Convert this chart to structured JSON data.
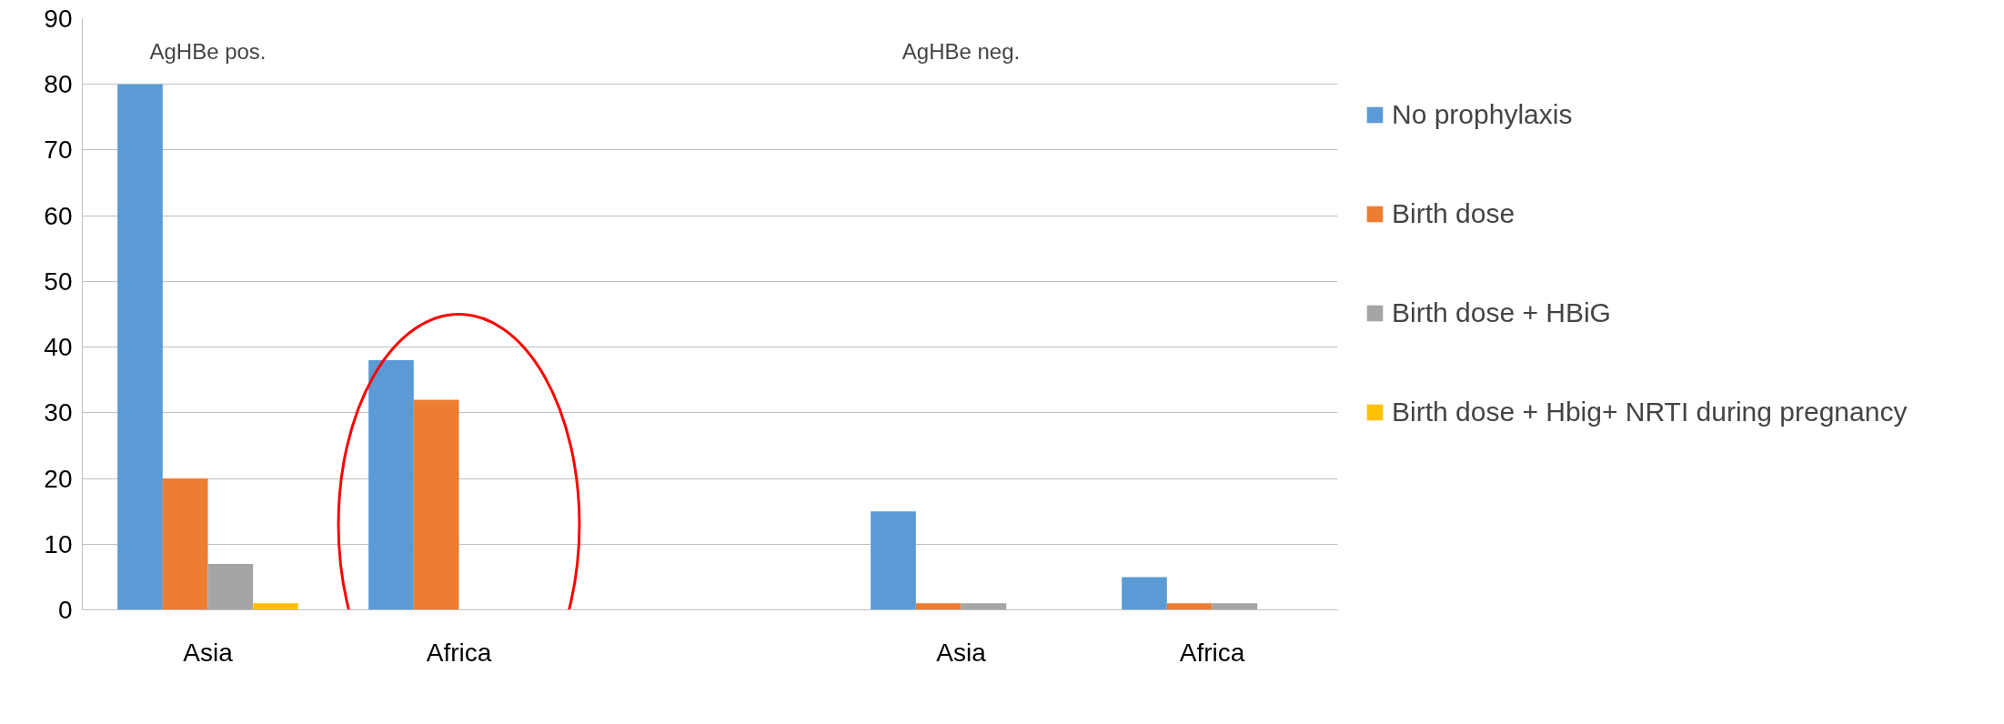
{
  "chart_data": {
    "type": "bar",
    "categories": [
      "Asia",
      "Africa",
      null,
      "Asia",
      "Africa"
    ],
    "series": [
      {
        "name": "No prophylaxis",
        "color": "#5b9bd5",
        "values": [
          80,
          38,
          null,
          15,
          5
        ]
      },
      {
        "name": "Birth dose",
        "color": "#ed7d31",
        "values": [
          20,
          32,
          null,
          1,
          1
        ]
      },
      {
        "name": "Birth dose + HBiG",
        "color": "#a5a5a5",
        "values": [
          7,
          null,
          null,
          1,
          1
        ]
      },
      {
        "name": "Birth dose + Hbig+ NRTI during pregnancy",
        "color": "#ffc000",
        "values": [
          1,
          null,
          null,
          null,
          null
        ]
      }
    ],
    "annotations": [
      "AgHBe pos.",
      "AgHBe neg."
    ],
    "ylim": [
      0,
      90
    ],
    "yticks": [
      0,
      10,
      20,
      30,
      40,
      50,
      60,
      70,
      80,
      90
    ],
    "grid": "y",
    "legend": "right"
  }
}
